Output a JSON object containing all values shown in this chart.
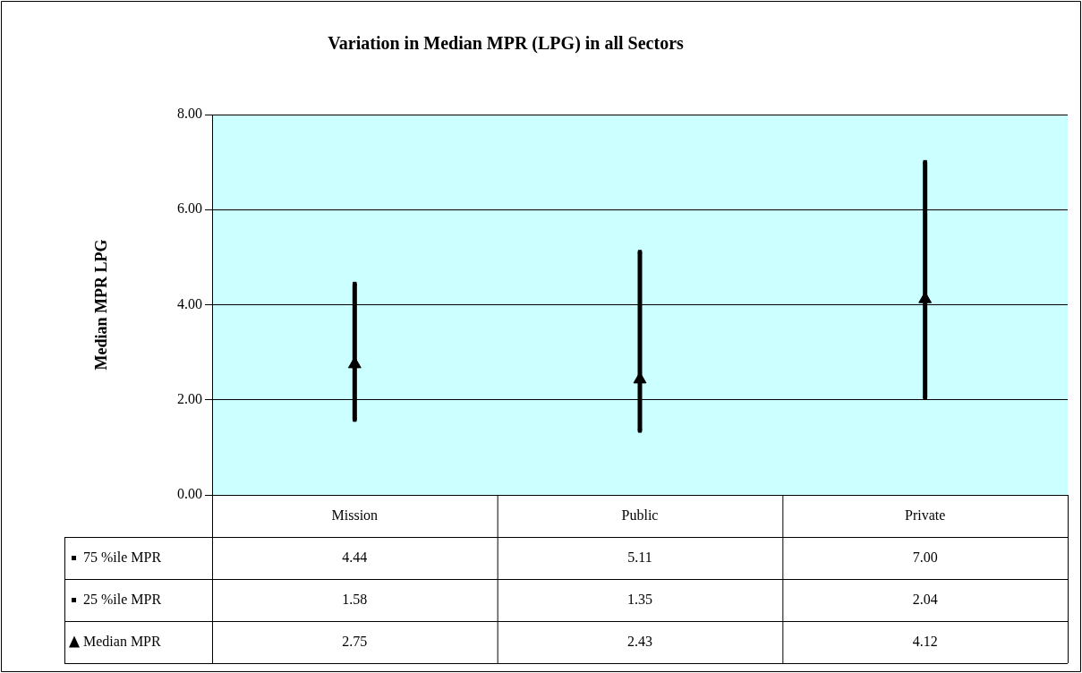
{
  "chart_data": {
    "type": "scatter",
    "title": "Variation in Median MPR (LPG) in all Sectors",
    "ylabel": "Median MPR LPG",
    "categories": [
      "Mission",
      "Public",
      "Private"
    ],
    "series": [
      {
        "name": "75 %ile MPR",
        "color": "#000000",
        "marker": "square",
        "values": [
          4.44,
          5.11,
          7.0
        ],
        "value_labels": [
          "4.44",
          "5.11",
          "7.00"
        ]
      },
      {
        "name": "25 %ile MPR",
        "color": "#000000",
        "marker": "square",
        "values": [
          1.58,
          1.35,
          2.04
        ],
        "value_labels": [
          "1.58",
          "1.35",
          "2.04"
        ]
      },
      {
        "name": "Median MPR",
        "color": "#000000",
        "marker": "triangle",
        "values": [
          2.75,
          2.43,
          4.12
        ],
        "value_labels": [
          "2.75",
          "2.43",
          "4.12"
        ]
      }
    ],
    "ylim": [
      0,
      8
    ],
    "yticks": [
      {
        "value": 0,
        "label": "0.00"
      },
      {
        "value": 2,
        "label": "2.00"
      },
      {
        "value": 4,
        "label": "4.00"
      },
      {
        "value": 6,
        "label": "6.00"
      },
      {
        "value": 8,
        "label": "8.00"
      }
    ],
    "grid": "y",
    "legend": "bottom"
  }
}
